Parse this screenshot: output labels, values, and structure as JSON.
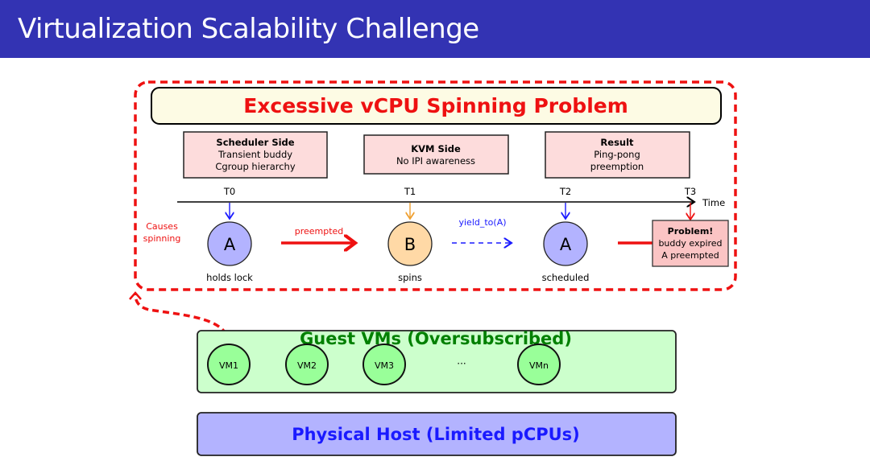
{
  "slide": {
    "title": "Virtualization Scalability Challenge"
  },
  "problem": {
    "title": "Excessive vCPU Spinning Problem",
    "boxes": [
      {
        "heading": "Scheduler Side",
        "lines": [
          "Transient buddy",
          "Cgroup hierarchy"
        ]
      },
      {
        "heading": "KVM Side",
        "lines": [
          "No IPI awareness"
        ]
      },
      {
        "heading": "Result",
        "lines": [
          "Ping-pong",
          "preemption"
        ]
      }
    ],
    "timeline": {
      "ticks": [
        "T0",
        "T1",
        "T2",
        "T3"
      ],
      "label": "Time"
    },
    "nodes": [
      {
        "letter": "A",
        "caption": "holds lock",
        "color": "#b3b3ff"
      },
      {
        "letter": "B",
        "caption": "spins",
        "color": "#ffd9a6"
      },
      {
        "letter": "A",
        "caption": "scheduled",
        "color": "#b3b3ff"
      }
    ],
    "arrows": {
      "preempted": "preempted",
      "yield": "yield_to(A)"
    },
    "side_note": [
      "Causes",
      "spinning"
    ],
    "result_box": {
      "heading": "Problem!",
      "lines": [
        "buddy expired",
        "A preempted"
      ]
    }
  },
  "guests": {
    "title": "Guest VMs (Oversubscribed)",
    "vms": [
      "VM1",
      "VM2",
      "VM3",
      "VMn"
    ],
    "ellipsis": "···"
  },
  "host": {
    "title": "Physical Host (Limited pCPUs)"
  },
  "colors": {
    "header": "#3333b3",
    "accent_red": "#ee1111",
    "blue": "#1a1aff",
    "orange": "#f0a030",
    "green": "#008000"
  }
}
